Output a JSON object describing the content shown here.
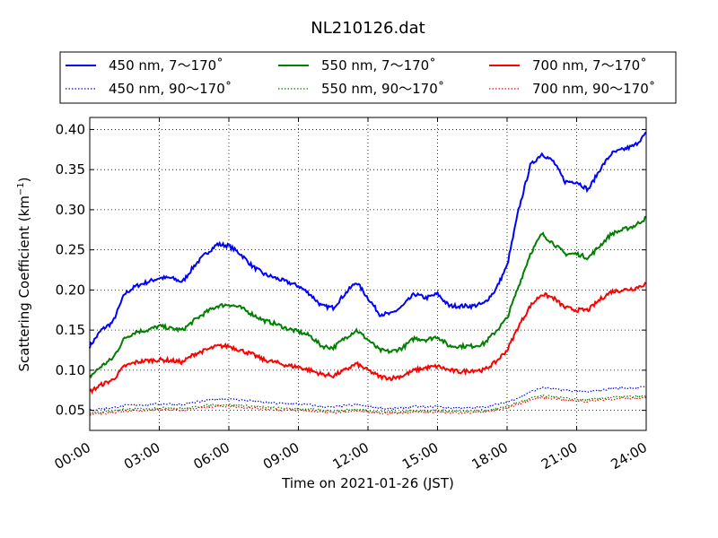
{
  "chart_data": {
    "type": "line",
    "title": "NL210126.dat",
    "xlabel": "Time on 2021-01-26 (JST)",
    "ylabel": "Scattering Coefficient (km",
    "ylabel_exp": "−1",
    "ylabel_close": ")",
    "xlim": [
      0,
      24
    ],
    "ylim": [
      0.025,
      0.415
    ],
    "xticks": [
      0,
      3,
      6,
      9,
      12,
      15,
      18,
      21,
      24
    ],
    "xtick_labels": [
      "00:00",
      "03:00",
      "06:00",
      "09:00",
      "12:00",
      "15:00",
      "18:00",
      "21:00",
      "24:00"
    ],
    "yticks": [
      0.05,
      0.1,
      0.15,
      0.2,
      0.25,
      0.3,
      0.35,
      0.4
    ],
    "ytick_labels": [
      "0.05",
      "0.10",
      "0.15",
      "0.20",
      "0.25",
      "0.30",
      "0.35",
      "0.40"
    ],
    "grid": true,
    "legend_position": "top-outside",
    "x": [
      0,
      0.5,
      1,
      1.5,
      2,
      2.5,
      3,
      3.5,
      4,
      4.5,
      5,
      5.5,
      6,
      6.5,
      7,
      7.5,
      8,
      8.5,
      9,
      9.5,
      10,
      10.5,
      11,
      11.5,
      12,
      12.5,
      13,
      13.5,
      14,
      14.5,
      15,
      15.5,
      16,
      16.5,
      17,
      17.5,
      18,
      18.5,
      19,
      19.5,
      20,
      20.5,
      21,
      21.5,
      22,
      22.5,
      23,
      23.5,
      24
    ],
    "series": [
      {
        "name": "450 nm, 7～170˚",
        "color": "#0000ff",
        "style": "solid",
        "values": [
          0.13,
          0.15,
          0.16,
          0.195,
          0.205,
          0.21,
          0.215,
          0.215,
          0.21,
          0.23,
          0.245,
          0.257,
          0.255,
          0.245,
          0.23,
          0.22,
          0.215,
          0.21,
          0.205,
          0.195,
          0.18,
          0.178,
          0.195,
          0.21,
          0.19,
          0.17,
          0.17,
          0.18,
          0.195,
          0.19,
          0.195,
          0.18,
          0.18,
          0.18,
          0.183,
          0.2,
          0.23,
          0.3,
          0.355,
          0.37,
          0.36,
          0.335,
          0.335,
          0.325,
          0.35,
          0.37,
          0.375,
          0.38,
          0.395
        ]
      },
      {
        "name": "550 nm, 7～170˚",
        "color": "#008000",
        "style": "solid",
        "values": [
          0.092,
          0.105,
          0.115,
          0.14,
          0.148,
          0.15,
          0.155,
          0.152,
          0.15,
          0.162,
          0.172,
          0.18,
          0.182,
          0.178,
          0.17,
          0.162,
          0.158,
          0.152,
          0.148,
          0.143,
          0.13,
          0.128,
          0.14,
          0.15,
          0.138,
          0.125,
          0.123,
          0.128,
          0.14,
          0.138,
          0.142,
          0.13,
          0.13,
          0.13,
          0.133,
          0.148,
          0.165,
          0.205,
          0.245,
          0.27,
          0.258,
          0.245,
          0.245,
          0.24,
          0.255,
          0.27,
          0.275,
          0.28,
          0.29
        ]
      },
      {
        "name": "700 nm, 7～170˚",
        "color": "#ff0000",
        "style": "solid",
        "values": [
          0.073,
          0.082,
          0.088,
          0.105,
          0.11,
          0.112,
          0.113,
          0.112,
          0.11,
          0.12,
          0.125,
          0.13,
          0.13,
          0.125,
          0.12,
          0.113,
          0.11,
          0.106,
          0.104,
          0.1,
          0.095,
          0.093,
          0.1,
          0.108,
          0.1,
          0.092,
          0.09,
          0.093,
          0.1,
          0.103,
          0.105,
          0.1,
          0.098,
          0.1,
          0.1,
          0.11,
          0.125,
          0.155,
          0.18,
          0.195,
          0.19,
          0.178,
          0.175,
          0.175,
          0.188,
          0.198,
          0.2,
          0.202,
          0.208
        ]
      },
      {
        "name": "450 nm, 90～170˚",
        "color": "#0000ff",
        "style": "dotted",
        "values": [
          0.05,
          0.052,
          0.053,
          0.056,
          0.057,
          0.057,
          0.058,
          0.058,
          0.057,
          0.06,
          0.062,
          0.064,
          0.064,
          0.063,
          0.062,
          0.06,
          0.059,
          0.058,
          0.058,
          0.057,
          0.055,
          0.054,
          0.056,
          0.057,
          0.055,
          0.053,
          0.052,
          0.053,
          0.055,
          0.054,
          0.055,
          0.053,
          0.053,
          0.053,
          0.054,
          0.057,
          0.06,
          0.066,
          0.073,
          0.078,
          0.077,
          0.075,
          0.074,
          0.073,
          0.075,
          0.077,
          0.078,
          0.078,
          0.079
        ]
      },
      {
        "name": "550 nm, 90～170˚",
        "color": "#008000",
        "style": "dotted",
        "values": [
          0.047,
          0.048,
          0.049,
          0.051,
          0.052,
          0.052,
          0.053,
          0.053,
          0.052,
          0.054,
          0.056,
          0.057,
          0.057,
          0.056,
          0.055,
          0.054,
          0.053,
          0.052,
          0.052,
          0.051,
          0.05,
          0.049,
          0.05,
          0.051,
          0.05,
          0.048,
          0.048,
          0.048,
          0.05,
          0.049,
          0.05,
          0.049,
          0.049,
          0.049,
          0.05,
          0.052,
          0.055,
          0.06,
          0.065,
          0.068,
          0.067,
          0.065,
          0.064,
          0.063,
          0.065,
          0.066,
          0.067,
          0.067,
          0.068
        ]
      },
      {
        "name": "700 nm, 90～170˚",
        "color": "#ff0000",
        "style": "dotted",
        "values": [
          0.045,
          0.046,
          0.047,
          0.049,
          0.05,
          0.05,
          0.051,
          0.051,
          0.05,
          0.052,
          0.054,
          0.055,
          0.055,
          0.054,
          0.053,
          0.052,
          0.051,
          0.05,
          0.05,
          0.049,
          0.048,
          0.047,
          0.048,
          0.049,
          0.048,
          0.046,
          0.046,
          0.047,
          0.048,
          0.048,
          0.048,
          0.047,
          0.047,
          0.047,
          0.048,
          0.05,
          0.053,
          0.058,
          0.063,
          0.066,
          0.065,
          0.063,
          0.062,
          0.061,
          0.063,
          0.064,
          0.065,
          0.065,
          0.066
        ]
      }
    ]
  }
}
